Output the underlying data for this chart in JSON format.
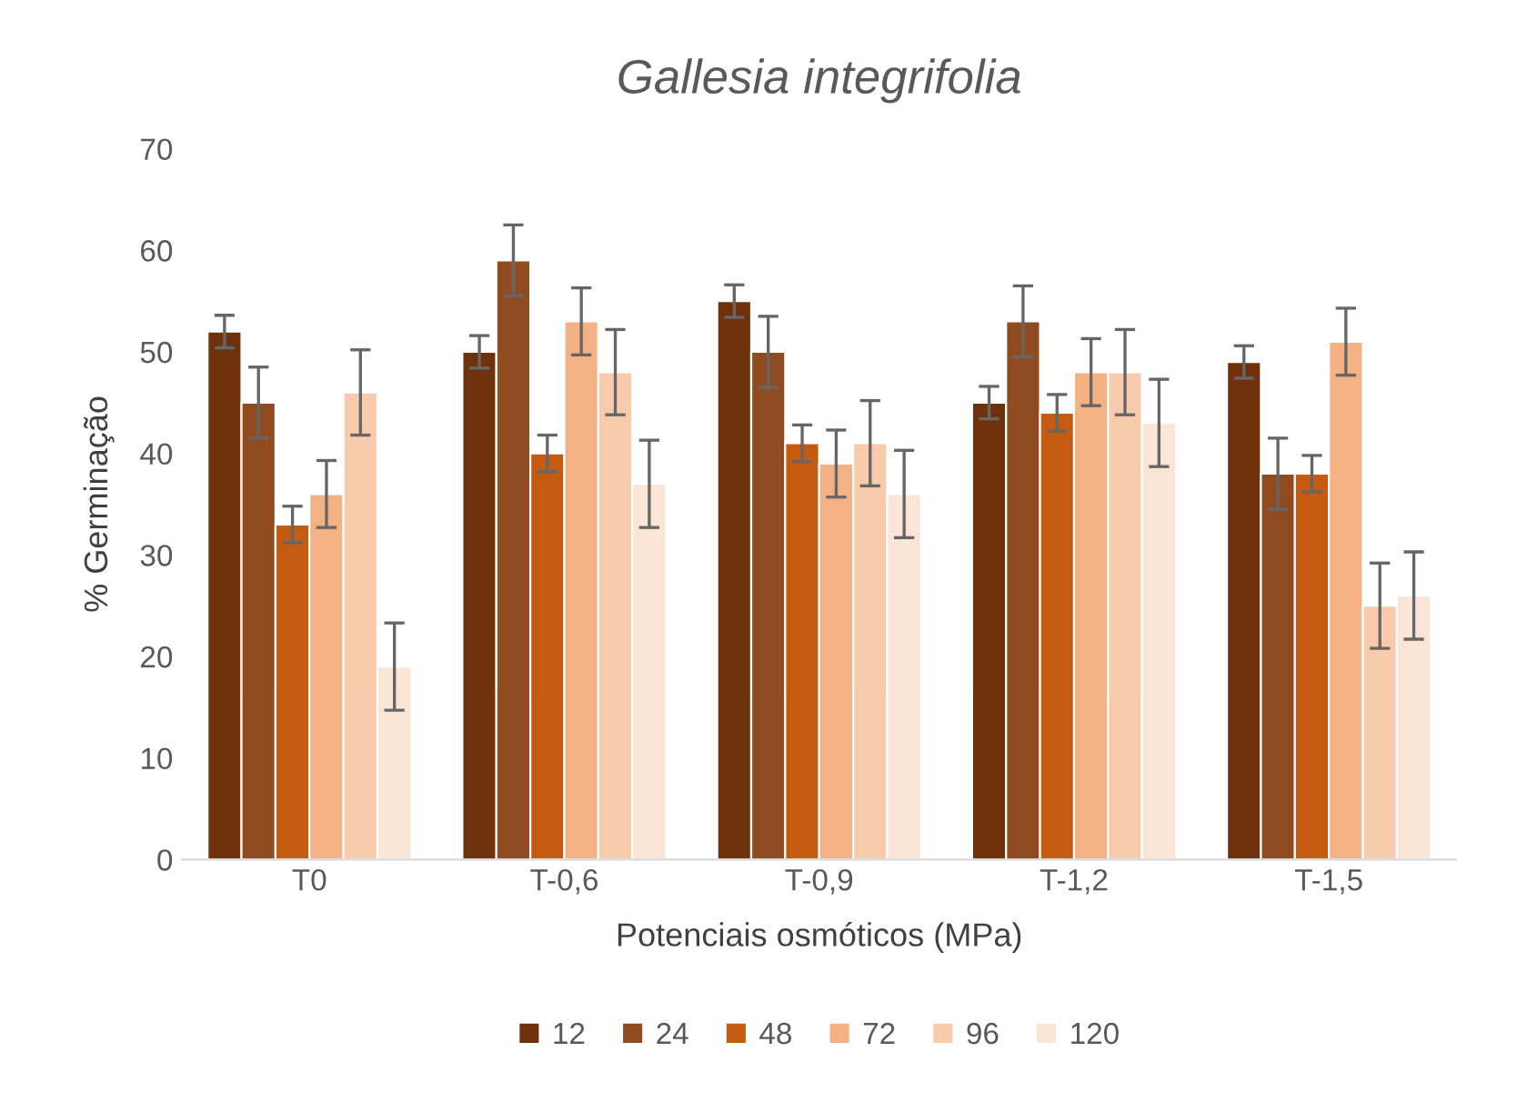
{
  "chart_data": {
    "type": "bar",
    "title": "Gallesia integrifolia",
    "xlabel": "Potenciais osmóticos (MPa)",
    "ylabel": "% Germinação",
    "categories": [
      "T0",
      "T-0,6",
      "T-0,9",
      "T-1,2",
      "T-1,5"
    ],
    "series": [
      {
        "name": "12",
        "color": "#6e310b",
        "values": [
          52,
          50,
          55,
          45,
          49
        ],
        "errors": [
          1.6,
          1.6,
          1.6,
          1.6,
          1.6
        ]
      },
      {
        "name": "24",
        "color": "#914b21",
        "values": [
          45,
          59,
          50,
          53,
          38
        ],
        "errors": [
          3.5,
          3.5,
          3.5,
          3.5,
          3.5
        ]
      },
      {
        "name": "48",
        "color": "#c55a11",
        "values": [
          33,
          40,
          41,
          44,
          38
        ],
        "errors": [
          1.8,
          1.8,
          1.8,
          1.8,
          1.8
        ]
      },
      {
        "name": "72",
        "color": "#f4b183",
        "values": [
          36,
          53,
          39,
          48,
          51
        ],
        "errors": [
          3.3,
          3.3,
          3.3,
          3.3,
          3.3
        ]
      },
      {
        "name": "96",
        "color": "#f8cbad",
        "values": [
          46,
          48,
          41,
          48,
          25
        ],
        "errors": [
          4.2,
          4.2,
          4.2,
          4.2,
          4.2
        ]
      },
      {
        "name": "120",
        "color": "#fbe5d6",
        "values": [
          19,
          37,
          36,
          43,
          26
        ],
        "errors": [
          4.3,
          4.3,
          4.3,
          4.3,
          4.3
        ]
      }
    ],
    "ylim": [
      0,
      70
    ],
    "yticks": [
      0,
      10,
      20,
      30,
      40,
      50,
      60,
      70
    ],
    "grid": false,
    "legend": "bottom"
  }
}
